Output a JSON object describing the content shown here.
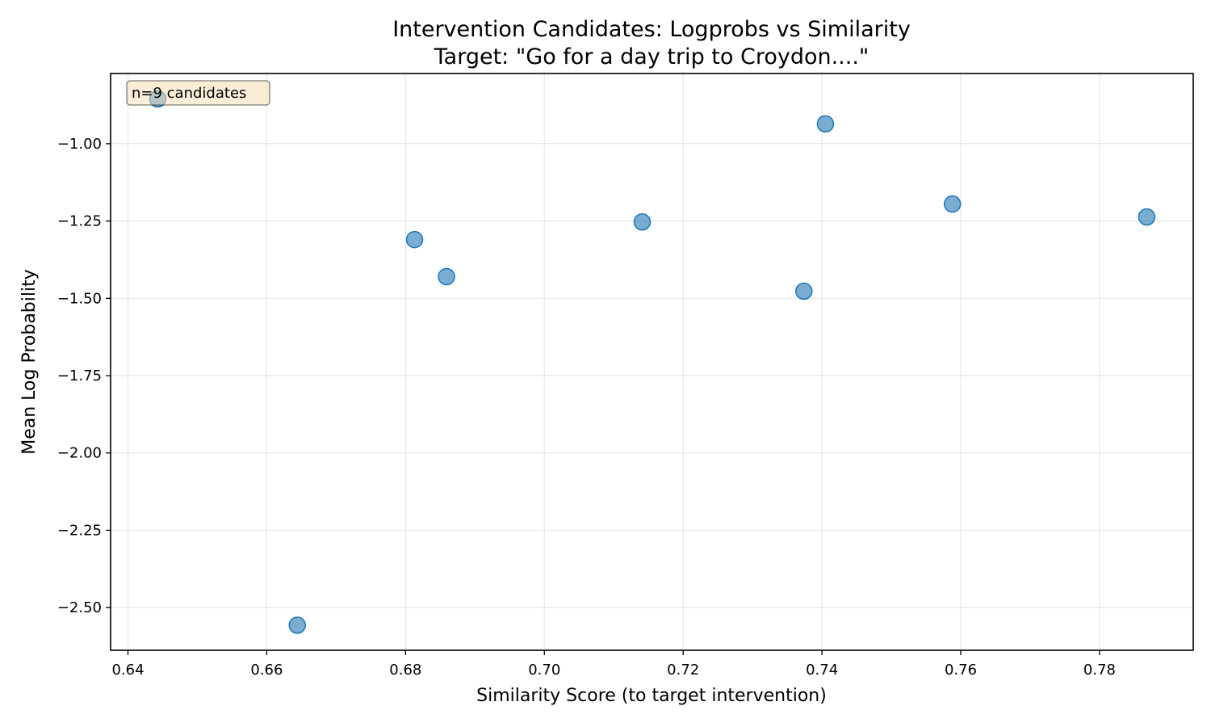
{
  "chart_data": {
    "type": "scatter",
    "title": "Intervention Candidates: Logprobs vs Similarity",
    "subtitle": "Target: \"Go for a day trip to Croydon....\"",
    "xlabel": "Similarity Score (to target intervention)",
    "ylabel": "Mean Log Probability",
    "xlim": [
      0.6375,
      0.7935
    ],
    "ylim": [
      -2.638,
      -0.773
    ],
    "xticks": [
      0.64,
      0.66,
      0.68,
      0.7,
      0.72,
      0.74,
      0.76,
      0.78
    ],
    "xtick_labels": [
      "0.64",
      "0.66",
      "0.68",
      "0.70",
      "0.72",
      "0.74",
      "0.76",
      "0.78"
    ],
    "yticks": [
      -1.0,
      -1.25,
      -1.5,
      -1.75,
      -2.0,
      -2.25,
      -2.5
    ],
    "ytick_labels": [
      "−1.00",
      "−1.25",
      "−1.50",
      "−1.75",
      "−2.00",
      "−2.25",
      "−2.50"
    ],
    "grid": true,
    "marker_color": "#1f77b4",
    "marker_opacity": 0.6,
    "annotation": {
      "text": "n=9 candidates",
      "placement": "top-left",
      "facecolor": "#f5deb3",
      "edgecolor": "#000000"
    },
    "series": [
      {
        "x": [
          0.6443,
          0.6644,
          0.6813,
          0.6859,
          0.7141,
          0.7374,
          0.7405,
          0.7588,
          0.7868
        ],
        "y": [
          -0.855,
          -2.557,
          -1.31,
          -1.43,
          -1.253,
          -1.477,
          -0.936,
          -1.195,
          -1.237
        ]
      }
    ]
  }
}
